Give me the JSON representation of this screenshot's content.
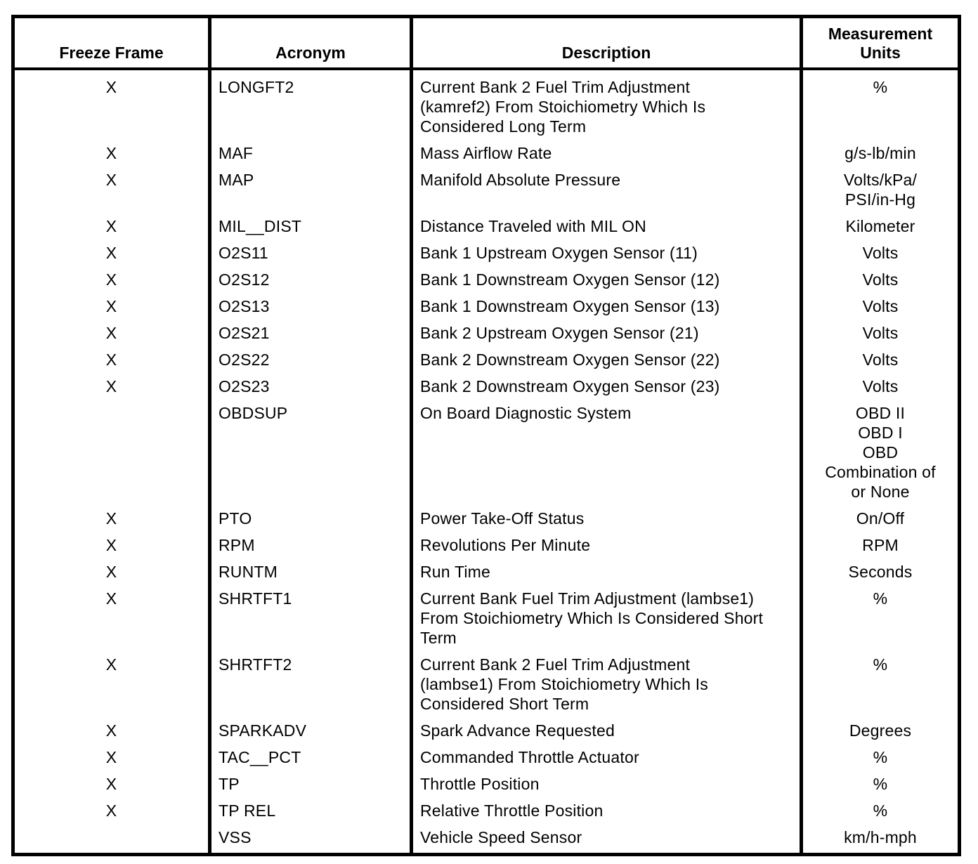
{
  "table": {
    "headers": {
      "freeze_frame": "Freeze Frame",
      "acronym": "Acronym",
      "description": "Description",
      "measurement_units": "Measurement\nUnits"
    },
    "rows": [
      {
        "freeze_frame": "X",
        "acronym": "LONGFT2",
        "description": "Current Bank 2 Fuel Trim Adjustment\n(kamref2) From Stoichiometry Which Is\nConsidered Long Term",
        "units": "%"
      },
      {
        "freeze_frame": "X",
        "acronym": "MAF",
        "description": "Mass Airflow Rate",
        "units": "g/s-lb/min"
      },
      {
        "freeze_frame": "X",
        "acronym": "MAP",
        "description": "Manifold Absolute Pressure",
        "units": "Volts/kPa/\nPSI/in-Hg"
      },
      {
        "freeze_frame": "X",
        "acronym": "MIL__DIST",
        "description": "Distance Traveled with MIL ON",
        "units": "Kilometer"
      },
      {
        "freeze_frame": "X",
        "acronym": "O2S11",
        "description": "Bank 1 Upstream Oxygen Sensor (11)",
        "units": "Volts"
      },
      {
        "freeze_frame": "X",
        "acronym": "O2S12",
        "description": "Bank 1 Downstream Oxygen Sensor (12)",
        "units": "Volts"
      },
      {
        "freeze_frame": "X",
        "acronym": "O2S13",
        "description": "Bank 1 Downstream Oxygen Sensor (13)",
        "units": "Volts"
      },
      {
        "freeze_frame": "X",
        "acronym": "O2S21",
        "description": "Bank 2 Upstream Oxygen Sensor (21)",
        "units": "Volts"
      },
      {
        "freeze_frame": "X",
        "acronym": "O2S22",
        "description": "Bank 2 Downstream Oxygen Sensor (22)",
        "units": "Volts"
      },
      {
        "freeze_frame": "X",
        "acronym": "O2S23",
        "description": "Bank 2 Downstream Oxygen Sensor (23)",
        "units": "Volts"
      },
      {
        "freeze_frame": "",
        "acronym": "OBDSUP",
        "description": "On Board Diagnostic System",
        "units": "OBD II\nOBD I\nOBD\nCombination of\nor None"
      },
      {
        "freeze_frame": "X",
        "acronym": "PTO",
        "description": "Power Take-Off Status",
        "units": "On/Off"
      },
      {
        "freeze_frame": "X",
        "acronym": "RPM",
        "description": "Revolutions Per Minute",
        "units": "RPM"
      },
      {
        "freeze_frame": "X",
        "acronym": "RUNTM",
        "description": "Run Time",
        "units": "Seconds"
      },
      {
        "freeze_frame": "X",
        "acronym": "SHRTFT1",
        "description": "Current Bank Fuel Trim Adjustment (lambse1)\nFrom Stoichiometry Which Is Considered Short\nTerm",
        "units": "%"
      },
      {
        "freeze_frame": "X",
        "acronym": "SHRTFT2",
        "description": "Current Bank 2 Fuel Trim Adjustment\n(lambse1) From Stoichiometry Which Is\nConsidered Short Term",
        "units": "%"
      },
      {
        "freeze_frame": "X",
        "acronym": "SPARKADV",
        "description": "Spark Advance Requested",
        "units": "Degrees"
      },
      {
        "freeze_frame": "X",
        "acronym": "TAC__PCT",
        "description": "Commanded Throttle Actuator",
        "units": "%"
      },
      {
        "freeze_frame": "X",
        "acronym": "TP",
        "description": "Throttle Position",
        "units": "%"
      },
      {
        "freeze_frame": "X",
        "acronym": "TP REL",
        "description": "Relative Throttle Position",
        "units": "%"
      },
      {
        "freeze_frame": "",
        "acronym": "VSS",
        "description": "Vehicle Speed Sensor",
        "units": "km/h-mph"
      }
    ]
  }
}
